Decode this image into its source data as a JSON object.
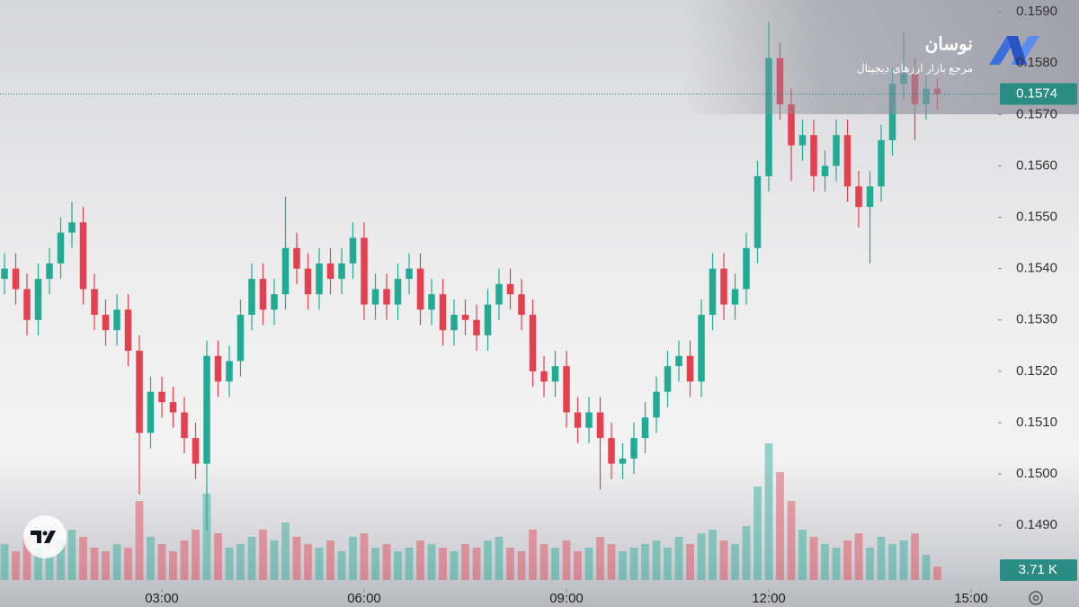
{
  "brand": {
    "name": "نوسان",
    "tagline": "مرجع بازار ارزهای دیجیتال"
  },
  "chart_data": {
    "type": "candlestick",
    "x": [
      40,
      50,
      60,
      70,
      80,
      90,
      100,
      110,
      120,
      130,
      140,
      150,
      160,
      170,
      180,
      190,
      200,
      210,
      220,
      230,
      240,
      250,
      260,
      270,
      280,
      290,
      300,
      310,
      320,
      330,
      340,
      350,
      360,
      370,
      380,
      390,
      400,
      410,
      420,
      430,
      440,
      450,
      460,
      470,
      480,
      490,
      500,
      510,
      520,
      530,
      540,
      550,
      560,
      570,
      580,
      590,
      600,
      610,
      620,
      630,
      640,
      650,
      660,
      670,
      680,
      690,
      700,
      710,
      720,
      730,
      740,
      750,
      760,
      770,
      780,
      790,
      800,
      810,
      820,
      830,
      840,
      850,
      860,
      870
    ],
    "open": [
      0.1538,
      0.154,
      0.1536,
      0.153,
      0.1538,
      0.1541,
      0.1547,
      0.1549,
      0.1536,
      0.1531,
      0.1528,
      0.1532,
      0.1524,
      0.1508,
      0.1516,
      0.1514,
      0.1512,
      0.1507,
      0.1502,
      0.1523,
      0.1518,
      0.1522,
      0.1531,
      0.1538,
      0.1532,
      0.1535,
      0.1544,
      0.154,
      0.1535,
      0.1541,
      0.1538,
      0.1541,
      0.1546,
      0.1533,
      0.1536,
      0.1533,
      0.1538,
      0.154,
      0.1532,
      0.1535,
      0.1528,
      0.1531,
      0.153,
      0.1527,
      0.1533,
      0.1537,
      0.1535,
      0.1531,
      0.152,
      0.1518,
      0.1521,
      0.1512,
      0.1509,
      0.1512,
      0.1507,
      0.1502,
      0.1503,
      0.1507,
      0.1511,
      0.1516,
      0.1521,
      0.1523,
      0.1518,
      0.1531,
      0.154,
      0.1533,
      0.1536,
      0.1544,
      0.1558,
      0.1581,
      0.1572,
      0.1564,
      0.1566,
      0.1558,
      0.156,
      0.1566,
      0.1556,
      0.1552,
      0.1556,
      0.1565,
      0.1576,
      0.1578,
      0.1572,
      0.1575
    ],
    "high": [
      0.1543,
      0.1543,
      0.1539,
      0.1541,
      0.1544,
      0.155,
      0.1553,
      0.1552,
      0.1539,
      0.1534,
      0.1535,
      0.1535,
      0.1527,
      0.1519,
      0.1519,
      0.1517,
      0.1515,
      0.151,
      0.1526,
      0.1526,
      0.1525,
      0.1534,
      0.1541,
      0.1541,
      0.1538,
      0.1554,
      0.1547,
      0.1543,
      0.1544,
      0.1544,
      0.1544,
      0.1549,
      0.1549,
      0.1539,
      0.1539,
      0.1541,
      0.1543,
      0.1543,
      0.1538,
      0.1538,
      0.1534,
      0.1534,
      0.1533,
      0.1536,
      0.154,
      0.154,
      0.1538,
      0.1534,
      0.1523,
      0.1524,
      0.1524,
      0.1515,
      0.1515,
      0.1515,
      0.151,
      0.1506,
      0.151,
      0.1514,
      0.1519,
      0.1524,
      0.1526,
      0.1526,
      0.1534,
      0.1543,
      0.1543,
      0.1539,
      0.1547,
      0.1561,
      0.1588,
      0.1584,
      0.1575,
      0.1569,
      0.1569,
      0.1563,
      0.1569,
      0.1569,
      0.1559,
      0.1559,
      0.1568,
      0.1579,
      0.1586,
      0.1581,
      0.1578,
      0.1577
    ],
    "low": [
      0.1535,
      0.1533,
      0.1527,
      0.1527,
      0.1535,
      0.1538,
      0.1544,
      0.1533,
      0.1528,
      0.1525,
      0.1525,
      0.1521,
      0.1496,
      0.1505,
      0.1511,
      0.1509,
      0.1504,
      0.1499,
      0.1489,
      0.1515,
      0.1515,
      0.1519,
      0.1528,
      0.1529,
      0.1529,
      0.1532,
      0.1537,
      0.1532,
      0.1532,
      0.1535,
      0.1535,
      0.1538,
      0.153,
      0.153,
      0.153,
      0.153,
      0.1535,
      0.1529,
      0.1529,
      0.1525,
      0.1525,
      0.1527,
      0.1524,
      0.1524,
      0.153,
      0.1532,
      0.1528,
      0.1517,
      0.1515,
      0.1515,
      0.1509,
      0.1506,
      0.1506,
      0.1497,
      0.1499,
      0.1499,
      0.15,
      0.1504,
      0.1508,
      0.1513,
      0.1518,
      0.1515,
      0.1515,
      0.1528,
      0.153,
      0.153,
      0.1533,
      0.1541,
      0.1555,
      0.1569,
      0.1557,
      0.1561,
      0.1555,
      0.1555,
      0.1557,
      0.1553,
      0.1548,
      0.1541,
      0.1553,
      0.1562,
      0.1573,
      0.1565,
      0.1569,
      0.1571
    ],
    "close": [
      0.154,
      0.1536,
      0.153,
      0.1538,
      0.1541,
      0.1547,
      0.1549,
      0.1536,
      0.1531,
      0.1528,
      0.1532,
      0.1524,
      0.1508,
      0.1516,
      0.1514,
      0.1512,
      0.1507,
      0.1502,
      0.1523,
      0.1518,
      0.1522,
      0.1531,
      0.1538,
      0.1532,
      0.1535,
      0.1544,
      0.154,
      0.1535,
      0.1541,
      0.1538,
      0.1541,
      0.1546,
      0.1533,
      0.1536,
      0.1533,
      0.1538,
      0.154,
      0.1532,
      0.1535,
      0.1528,
      0.1531,
      0.153,
      0.1527,
      0.1533,
      0.1537,
      0.1535,
      0.1531,
      0.152,
      0.1518,
      0.1521,
      0.1512,
      0.1509,
      0.1512,
      0.1507,
      0.1502,
      0.1503,
      0.1507,
      0.1511,
      0.1516,
      0.1521,
      0.1523,
      0.1518,
      0.1531,
      0.154,
      0.1533,
      0.1536,
      0.1544,
      0.1558,
      0.1581,
      0.1572,
      0.1564,
      0.1566,
      0.1558,
      0.156,
      0.1566,
      0.1556,
      0.1552,
      0.1556,
      0.1565,
      0.1576,
      0.1578,
      0.1572,
      0.1575,
      0.1574
    ],
    "up_color": "#22ab94",
    "down_color": "#e5404f",
    "xlim": [
      36,
      924
    ],
    "xticks": [
      {
        "value": 180,
        "label": "03:00"
      },
      {
        "value": 360,
        "label": "06:00"
      },
      {
        "value": 540,
        "label": "09:00"
      },
      {
        "value": 720,
        "label": "12:00"
      },
      {
        "value": 900,
        "label": "15:00"
      }
    ],
    "ylim": [
      0.14776,
      0.15923
    ],
    "yticks": [
      {
        "value": 0.149,
        "label": "0.1490"
      },
      {
        "value": 0.15,
        "label": "0.1500"
      },
      {
        "value": 0.151,
        "label": "0.1510"
      },
      {
        "value": 0.152,
        "label": "0.1520"
      },
      {
        "value": 0.153,
        "label": "0.1530"
      },
      {
        "value": 0.154,
        "label": "0.1540"
      },
      {
        "value": 0.155,
        "label": "0.1550"
      },
      {
        "value": 0.156,
        "label": "0.1560"
      },
      {
        "value": 0.157,
        "label": "0.1570"
      },
      {
        "value": 0.158,
        "label": "0.1580"
      },
      {
        "value": 0.159,
        "label": "0.1590"
      }
    ],
    "last_price": 0.1574,
    "volume": {
      "lim": [
        0,
        40
      ],
      "last_label": "3.71 K",
      "values": [
        10,
        8,
        12,
        9,
        7,
        11,
        14,
        12,
        9,
        8,
        10,
        9,
        22,
        12,
        10,
        8,
        11,
        14,
        24,
        13,
        9,
        10,
        12,
        14,
        11,
        16,
        12,
        10,
        9,
        11,
        8,
        12,
        13,
        9,
        10,
        8,
        9,
        11,
        10,
        9,
        8,
        10,
        9,
        11,
        12,
        9,
        8,
        14,
        10,
        9,
        11,
        8,
        9,
        12,
        10,
        8,
        9,
        10,
        11,
        9,
        12,
        10,
        13,
        14,
        11,
        10,
        15,
        26,
        38,
        30,
        22,
        14,
        12,
        10,
        9,
        11,
        13,
        9,
        12,
        10,
        11,
        13,
        7,
        3.71
      ]
    }
  }
}
